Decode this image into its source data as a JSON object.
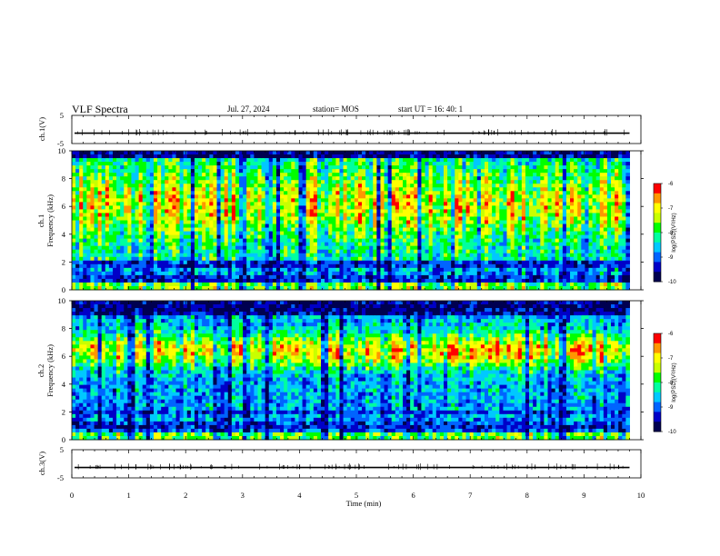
{
  "header": {
    "title": "VLF Spectra",
    "date": "Jul. 27, 2024",
    "station": "station= MOS",
    "start": "start UT = 16: 40: 1"
  },
  "colors": {
    "cmap": [
      "#000050",
      "#0000c8",
      "#0064ff",
      "#00c8ff",
      "#00ffa0",
      "#00ff00",
      "#c8ff00",
      "#ffff00",
      "#ff9600",
      "#ff0000",
      "#ffffff"
    ]
  },
  "chart_data": [
    {
      "type": "line",
      "panel": "ch1-waveform",
      "ylabel": "ch.1(V)",
      "ylim": [
        -5,
        5
      ],
      "yticks": [
        "5",
        "-5"
      ],
      "xlim": [
        0,
        10
      ],
      "baseline": -1.3
    },
    {
      "type": "heatmap",
      "panel": "ch1-spectrogram",
      "ylabel_line1": "ch.1",
      "ylabel_line2": "Frequency (kHz)",
      "ylim": [
        0,
        10
      ],
      "yticks": [
        "0",
        "2",
        "4",
        "6",
        "8",
        "10"
      ],
      "xlim": [
        0,
        9.8
      ],
      "colorbar": {
        "label": "log(PSD)(V²/Hz)",
        "range": [
          -10,
          -6
        ],
        "ticks": [
          "-6",
          "-7",
          "-8",
          "-9",
          "-10"
        ]
      }
    },
    {
      "type": "heatmap",
      "panel": "ch2-spectrogram",
      "ylabel_line1": "ch.2",
      "ylabel_line2": "Frequency (kHz)",
      "ylim": [
        0,
        10
      ],
      "yticks": [
        "0",
        "2",
        "4",
        "6",
        "8",
        "10"
      ],
      "xlim": [
        0,
        9.8
      ],
      "colorbar": {
        "label": "log(PSD)(V²/Hz)",
        "range": [
          -10,
          -6
        ],
        "ticks": [
          "-6",
          "-7",
          "-8",
          "-9",
          "-10"
        ]
      }
    },
    {
      "type": "line",
      "panel": "ch3-waveform",
      "ylabel": "ch.3(V)",
      "ylim": [
        -5,
        5
      ],
      "yticks": [
        "5",
        "-5"
      ],
      "xlim": [
        0,
        10
      ],
      "baseline": -1.3
    }
  ],
  "xaxis": {
    "label": "Time (min)",
    "ticks": [
      "0",
      "1",
      "2",
      "3",
      "4",
      "5",
      "6",
      "7",
      "8",
      "9",
      "10"
    ]
  }
}
